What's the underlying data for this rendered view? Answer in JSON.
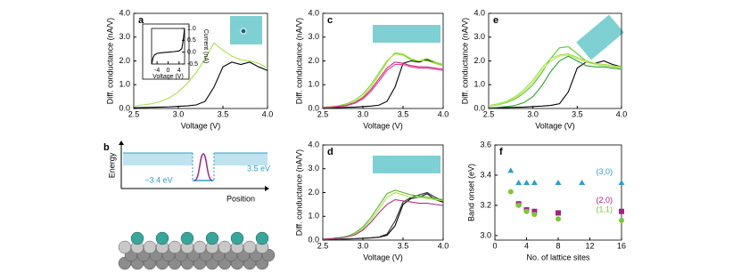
{
  "chart_data": [
    {
      "type": "line",
      "label": "a",
      "xlabel": "Voltage (V)",
      "ylabel": "Diff. conductance (nA/V)",
      "xlim": [
        2.5,
        4.0
      ],
      "xticks": [
        2.5,
        {
          "value": 3.0,
          "label": "3.0"
        },
        3.5,
        {
          "value": 4.0,
          "label": "4.0"
        }
      ],
      "ylim": [
        0,
        4.0
      ],
      "yticks": [
        {
          "value": 0,
          "label": "0.0"
        },
        {
          "value": 1,
          "label": "1.0"
        },
        {
          "value": 2,
          "label": "2.0"
        },
        {
          "value": 3,
          "label": "3.0"
        },
        {
          "value": 4,
          "label": "4.0"
        }
      ],
      "x": [
        2.5,
        2.6,
        2.7,
        2.8,
        2.9,
        3.0,
        3.1,
        3.2,
        3.3,
        3.4,
        3.5,
        3.6,
        3.7,
        3.8,
        3.9,
        4.0
      ],
      "series": [
        {
          "color": "#000000",
          "values": [
            0.03,
            0.04,
            0.05,
            0.06,
            0.07,
            0.09,
            0.11,
            0.15,
            0.3,
            0.9,
            1.75,
            1.95,
            1.85,
            1.95,
            1.75,
            1.6
          ]
        },
        {
          "color": "#a6e24a",
          "values": [
            0.1,
            0.15,
            0.2,
            0.3,
            0.45,
            0.7,
            1.05,
            1.5,
            2.1,
            2.75,
            2.45,
            2.2,
            2.05,
            2.0,
            1.9,
            1.7
          ]
        }
      ]
    },
    {
      "type": "line",
      "xlabel": "Voltage (V)",
      "ylabel": "Current (nA)",
      "xlim": [
        -6,
        6
      ],
      "xticks": [
        -4,
        0,
        4
      ],
      "ylim": [
        -0.5,
        1.0
      ],
      "yticks": [
        -0.5,
        {
          "value": 0,
          "label": "0.0"
        },
        0.5,
        {
          "value": 1,
          "label": "1.0"
        }
      ],
      "x": [
        -6,
        -5.5,
        -5,
        -4,
        -2,
        0,
        2,
        4,
        5,
        5.5,
        6
      ],
      "series": [
        {
          "color": "#000000",
          "values": [
            -0.5,
            -0.25,
            -0.12,
            -0.05,
            -0.02,
            0,
            0.02,
            0.05,
            0.15,
            0.5,
            1.0
          ]
        }
      ]
    },
    {
      "type": "line",
      "label": "c",
      "xlabel": "Voltage (V)",
      "ylabel": "Diff. conductance (nA/V)",
      "xlim": [
        2.5,
        4.0
      ],
      "xticks": [
        2.5,
        {
          "value": 3.0,
          "label": "3.0"
        },
        3.5,
        {
          "value": 4.0,
          "label": "4.0"
        }
      ],
      "ylim": [
        0,
        4.0
      ],
      "yticks": [
        {
          "value": 0,
          "label": "0.0"
        },
        {
          "value": 1,
          "label": "1.0"
        },
        {
          "value": 2,
          "label": "2.0"
        },
        {
          "value": 3,
          "label": "3.0"
        },
        {
          "value": 4,
          "label": "4.0"
        }
      ],
      "x": [
        2.5,
        2.6,
        2.7,
        2.8,
        2.9,
        3.0,
        3.1,
        3.2,
        3.3,
        3.4,
        3.5,
        3.6,
        3.7,
        3.8,
        3.9,
        4.0
      ],
      "series": [
        {
          "color": "#000000",
          "values": [
            0.02,
            0.03,
            0.04,
            0.05,
            0.06,
            0.08,
            0.1,
            0.14,
            0.3,
            0.9,
            1.9,
            2.0,
            1.95,
            2.05,
            1.9,
            1.8
          ]
        },
        {
          "color": "#7ed321",
          "values": [
            0.05,
            0.08,
            0.12,
            0.2,
            0.35,
            0.6,
            1.0,
            1.5,
            2.0,
            2.3,
            2.25,
            2.05,
            2.0,
            2.1,
            1.95,
            1.85
          ]
        },
        {
          "color": "#a6e24a",
          "values": [
            0.05,
            0.07,
            0.1,
            0.16,
            0.28,
            0.5,
            0.9,
            1.4,
            1.95,
            2.35,
            2.3,
            2.1,
            2.0,
            2.0,
            1.9,
            1.8
          ]
        },
        {
          "color": "#d6287f",
          "values": [
            0.04,
            0.06,
            0.09,
            0.14,
            0.25,
            0.45,
            0.8,
            1.25,
            1.7,
            1.95,
            1.9,
            1.8,
            1.75,
            1.75,
            1.7,
            1.65
          ]
        },
        {
          "color": "#e0409a",
          "values": [
            0.04,
            0.05,
            0.08,
            0.12,
            0.22,
            0.4,
            0.72,
            1.15,
            1.6,
            1.85,
            1.85,
            1.75,
            1.7,
            1.7,
            1.65,
            1.6
          ]
        }
      ]
    },
    {
      "type": "line",
      "label": "d",
      "xlabel": "Voltage (V)",
      "ylabel": "Diff. conductance (nA/V)",
      "xlim": [
        2.5,
        4.0
      ],
      "xticks": [
        2.5,
        {
          "value": 3.0,
          "label": "3.0"
        },
        3.5,
        {
          "value": 4.0,
          "label": "4.0"
        }
      ],
      "ylim": [
        0,
        4.0
      ],
      "yticks": [
        {
          "value": 0,
          "label": "0.0"
        },
        {
          "value": 1,
          "label": "1.0"
        },
        {
          "value": 2,
          "label": "2.0"
        },
        {
          "value": 3,
          "label": "3.0"
        },
        {
          "value": 4,
          "label": "4.0"
        }
      ],
      "x": [
        2.5,
        2.6,
        2.7,
        2.8,
        2.9,
        3.0,
        3.1,
        3.2,
        3.3,
        3.4,
        3.5,
        3.6,
        3.7,
        3.8,
        3.9,
        4.0
      ],
      "series": [
        {
          "color": "#000000",
          "values": [
            0.02,
            0.03,
            0.04,
            0.05,
            0.06,
            0.07,
            0.09,
            0.12,
            0.2,
            0.6,
            1.5,
            1.75,
            1.8,
            1.95,
            1.7,
            1.6
          ]
        },
        {
          "color": "#333333",
          "values": [
            0.02,
            0.03,
            0.04,
            0.05,
            0.06,
            0.08,
            0.1,
            0.13,
            0.25,
            0.8,
            1.6,
            1.8,
            1.9,
            2.0,
            1.8,
            1.65
          ]
        },
        {
          "color": "#58b82a",
          "values": [
            0.05,
            0.07,
            0.1,
            0.16,
            0.3,
            0.55,
            0.95,
            1.45,
            1.95,
            2.1,
            2.0,
            1.9,
            1.85,
            1.8,
            1.75,
            1.7
          ]
        },
        {
          "color": "#a6e24a",
          "values": [
            0.04,
            0.06,
            0.09,
            0.14,
            0.25,
            0.48,
            0.85,
            1.3,
            1.8,
            2.0,
            1.9,
            1.8,
            1.8,
            1.75,
            1.7,
            1.65
          ]
        },
        {
          "color": "#b0307f",
          "values": [
            0.04,
            0.06,
            0.09,
            0.13,
            0.22,
            0.42,
            0.75,
            1.15,
            1.5,
            1.7,
            1.65,
            1.6,
            1.55,
            1.55,
            1.5,
            1.45
          ]
        }
      ]
    },
    {
      "type": "line",
      "label": "e",
      "xlabel": "Voltage (V)",
      "ylabel": "Diff. conductance (nA/V)",
      "xlim": [
        2.5,
        4.0
      ],
      "xticks": [
        2.5,
        {
          "value": 3.0,
          "label": "3.0"
        },
        3.5,
        {
          "value": 4.0,
          "label": "4.0"
        }
      ],
      "ylim": [
        0,
        4.0
      ],
      "yticks": [
        {
          "value": 0,
          "label": "0.0"
        },
        {
          "value": 1,
          "label": "1.0"
        },
        {
          "value": 2,
          "label": "2.0"
        },
        {
          "value": 3,
          "label": "3.0"
        },
        {
          "value": 4,
          "label": "4.0"
        }
      ],
      "x": [
        2.5,
        2.6,
        2.7,
        2.8,
        2.9,
        3.0,
        3.1,
        3.2,
        3.3,
        3.4,
        3.5,
        3.6,
        3.7,
        3.8,
        3.9,
        4.0
      ],
      "series": [
        {
          "color": "#000000",
          "values": [
            0.02,
            0.03,
            0.04,
            0.05,
            0.06,
            0.08,
            0.1,
            0.13,
            0.2,
            0.7,
            1.7,
            1.95,
            1.9,
            2.0,
            1.85,
            1.75
          ]
        },
        {
          "color": "#2e9e2e",
          "values": [
            0.03,
            0.05,
            0.08,
            0.13,
            0.25,
            0.5,
            0.95,
            1.55,
            2.0,
            2.2,
            2.0,
            1.8,
            1.75,
            1.75,
            1.7,
            1.65
          ]
        },
        {
          "color": "#5cc43a",
          "values": [
            0.1,
            0.15,
            0.25,
            0.4,
            0.65,
            1.0,
            1.5,
            2.1,
            2.55,
            2.6,
            2.3,
            2.0,
            1.9,
            1.85,
            1.8,
            1.7
          ]
        },
        {
          "color": "#a6e24a",
          "values": [
            0.12,
            0.2,
            0.3,
            0.5,
            0.8,
            1.2,
            1.7,
            2.1,
            2.25,
            2.3,
            2.15,
            2.0,
            1.9,
            1.85,
            1.8,
            1.75
          ]
        },
        {
          "color": "#bde86a",
          "values": [
            0.1,
            0.17,
            0.27,
            0.45,
            0.72,
            1.1,
            1.6,
            2.0,
            2.2,
            2.25,
            2.1,
            1.95,
            1.85,
            1.8,
            1.75,
            1.7
          ]
        }
      ]
    },
    {
      "type": "scatter",
      "label": "f",
      "xlabel": "No. of lattice sites",
      "ylabel": "Band onset (eV)",
      "xlim": [
        0,
        16
      ],
      "xticks": [
        0,
        4,
        8,
        12,
        16
      ],
      "ylim": [
        2.97,
        3.6
      ],
      "yticks": [
        {
          "value": 3.0,
          "label": "3.0"
        },
        3.2,
        3.4,
        3.6
      ],
      "series": [
        {
          "name": "(3,0)",
          "color": "#2f9fc8",
          "marker": "triangle",
          "x": [
            2,
            3,
            4,
            5,
            8,
            11,
            16
          ],
          "values": [
            3.43,
            3.35,
            3.35,
            3.35,
            3.35,
            3.35,
            3.35
          ]
        },
        {
          "name": "(2,0)",
          "color": "#a0267f",
          "marker": "square",
          "x": [
            3,
            4,
            5,
            8,
            16
          ],
          "values": [
            3.21,
            3.17,
            3.16,
            3.15,
            3.16
          ]
        },
        {
          "name": "(1,1)",
          "color": "#7ec63a",
          "marker": "circle",
          "x": [
            2,
            3,
            4,
            5,
            8,
            16
          ],
          "values": [
            3.29,
            3.2,
            3.16,
            3.14,
            3.11,
            3.1
          ]
        }
      ]
    }
  ],
  "diagram_b": {
    "label": "b",
    "y_label": "Energy",
    "x_label": "Position",
    "level_label": "~3.4 eV",
    "band_label": "3.5 eV"
  }
}
